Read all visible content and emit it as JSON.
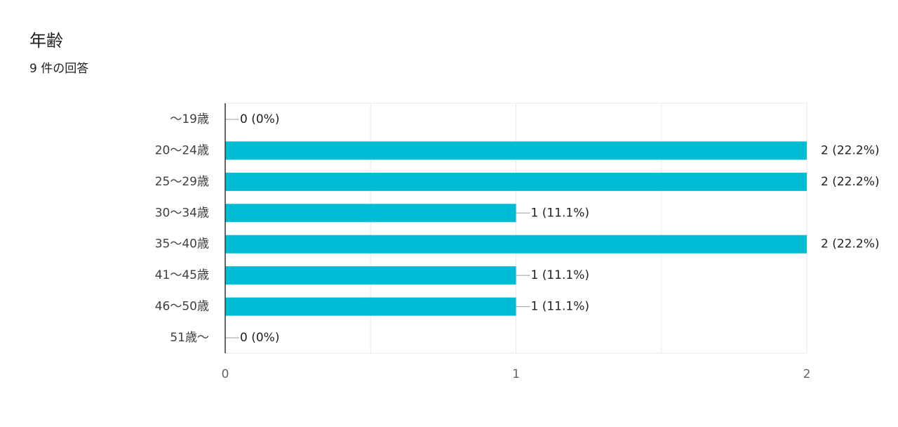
{
  "header": {
    "title": "年齢",
    "subtitle": "9 件の回答"
  },
  "colors": {
    "bar": "#00bcd4",
    "grid": "#e8eaed",
    "axis": "#333333",
    "leader": "#9e9e9e"
  },
  "chart_data": {
    "type": "bar",
    "orientation": "horizontal",
    "title": "",
    "xlabel": "",
    "ylabel": "",
    "categories": [
      "〜19歳",
      "20〜24歳",
      "25〜29歳",
      "30〜34歳",
      "35〜40歳",
      "41〜45歳",
      "46〜50歳",
      "51歳〜"
    ],
    "values": [
      0,
      2,
      2,
      1,
      2,
      1,
      1,
      0
    ],
    "value_labels": [
      "0 (0%)",
      "2 (22.2%)",
      "2 (22.2%)",
      "1 (11.1%)",
      "2 (22.2%)",
      "1 (11.1%)",
      "1 (11.1%)",
      "0 (0%)"
    ],
    "xlim": [
      0,
      2
    ],
    "x_ticks": [
      "0",
      "1",
      "2"
    ],
    "grid": true
  }
}
